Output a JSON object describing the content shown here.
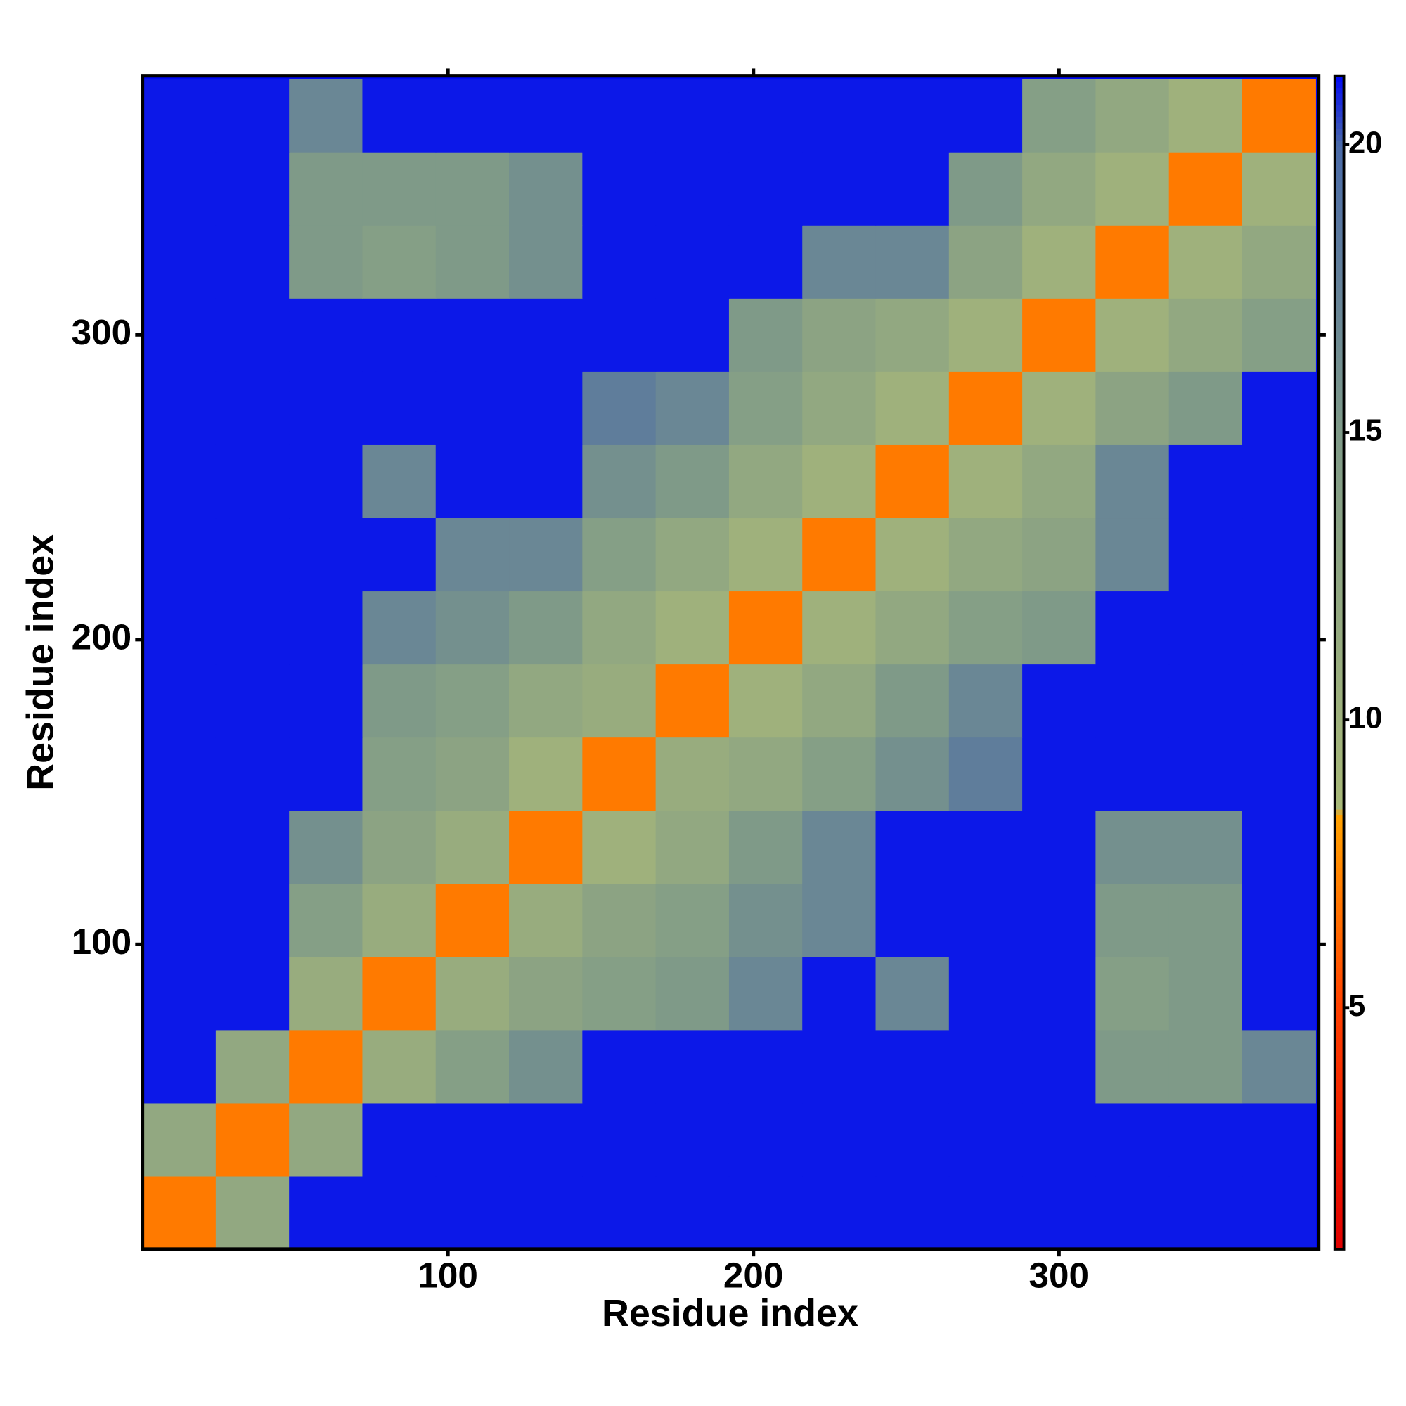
{
  "chart_data": {
    "type": "heatmap",
    "xlabel": "Residue index",
    "ylabel": "Residue index",
    "xlim": [
      0,
      385
    ],
    "ylim": [
      0,
      385
    ],
    "xticks": [
      100,
      200,
      300
    ],
    "yticks": [
      100,
      200,
      300
    ],
    "xbins": [
      0,
      24,
      48,
      72,
      96,
      120,
      144,
      168,
      192,
      216,
      240,
      264,
      288,
      312,
      336,
      360,
      384
    ],
    "ybins": [
      0,
      24,
      48,
      72,
      96,
      120,
      144,
      168,
      192,
      216,
      240,
      264,
      288,
      312,
      336,
      360,
      384
    ],
    "z": [
      [
        7,
        12,
        21,
        21,
        21,
        21,
        21,
        21,
        21,
        21,
        21,
        21,
        21,
        21,
        21,
        21
      ],
      [
        12,
        7,
        12,
        21,
        21,
        21,
        21,
        21,
        21,
        21,
        21,
        21,
        21,
        21,
        21,
        21
      ],
      [
        21,
        12,
        7,
        11,
        14,
        16,
        21,
        21,
        21,
        21,
        21,
        21,
        21,
        15,
        15,
        17
      ],
      [
        21,
        21,
        11,
        7,
        11,
        13,
        14,
        15,
        17,
        21,
        17,
        21,
        21,
        14,
        15,
        21
      ],
      [
        21,
        21,
        14,
        11,
        7,
        11,
        13,
        14,
        16,
        17,
        21,
        21,
        21,
        15,
        15,
        21
      ],
      [
        21,
        21,
        16,
        13,
        11,
        7,
        10,
        12,
        15,
        17,
        21,
        21,
        21,
        16,
        16,
        21
      ],
      [
        21,
        21,
        21,
        14,
        13,
        10,
        7,
        11,
        12,
        14,
        16,
        18,
        21,
        21,
        21,
        21
      ],
      [
        21,
        21,
        21,
        15,
        14,
        12,
        11,
        7,
        10,
        12,
        15,
        17,
        21,
        21,
        21,
        21
      ],
      [
        21,
        21,
        21,
        17,
        16,
        15,
        12,
        10,
        7,
        10,
        12,
        14,
        15,
        21,
        21,
        21
      ],
      [
        21,
        21,
        21,
        21,
        17,
        17,
        14,
        12,
        10,
        7,
        10,
        12,
        13,
        17,
        21,
        21
      ],
      [
        21,
        21,
        21,
        17,
        21,
        21,
        16,
        15,
        12,
        10,
        7,
        10,
        12,
        17,
        21,
        21
      ],
      [
        21,
        21,
        21,
        21,
        21,
        21,
        18,
        17,
        14,
        12,
        10,
        7,
        10,
        13,
        15,
        21
      ],
      [
        21,
        21,
        21,
        21,
        21,
        21,
        21,
        21,
        15,
        13,
        12,
        10,
        7,
        10,
        12,
        14
      ],
      [
        21,
        21,
        15,
        14,
        15,
        16,
        21,
        21,
        21,
        17,
        17,
        13,
        10,
        7,
        10,
        12
      ],
      [
        21,
        21,
        15,
        15,
        15,
        16,
        21,
        21,
        21,
        21,
        21,
        15,
        12,
        10,
        7,
        10
      ],
      [
        21,
        21,
        17,
        21,
        21,
        21,
        21,
        21,
        21,
        21,
        21,
        21,
        14,
        12,
        10,
        7
      ]
    ],
    "zlim": [
      0.8,
      21.2
    ],
    "zticks": [
      5,
      10,
      15,
      20
    ],
    "colorscale": [
      [
        0.8,
        "#e00000"
      ],
      [
        5,
        "#ff4000"
      ],
      [
        8.3,
        "#ffa000"
      ],
      [
        8.5,
        "#a8b878"
      ],
      [
        15,
        "#7f9a88"
      ],
      [
        20,
        "#4a6aa8"
      ],
      [
        21.2,
        "#0008f5"
      ]
    ]
  }
}
